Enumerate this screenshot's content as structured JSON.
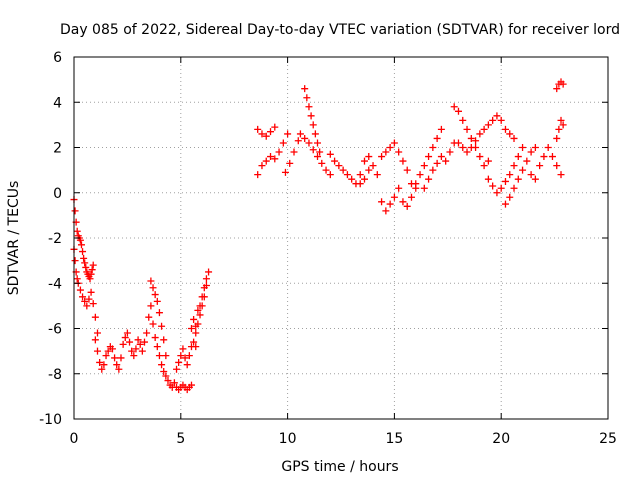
{
  "chart_data": {
    "type": "scatter",
    "title": "Day 085 of 2022, Sidereal Day-to-day VTEC variation (SDTVAR) for receiver lord",
    "xlabel": "GPS time / hours",
    "ylabel": "SDTVAR / TECUs",
    "xlim": [
      0,
      25
    ],
    "ylim": [
      -10,
      6
    ],
    "xticks": [
      0,
      5,
      10,
      15,
      20,
      25
    ],
    "yticks": [
      -10,
      -8,
      -6,
      -4,
      -2,
      0,
      2,
      4,
      6
    ],
    "grid": true,
    "marker": "+",
    "color": "#ff0000",
    "series": [
      {
        "x": [
          0.0,
          0.05,
          0.1,
          0.15,
          0.2,
          0.25,
          0.3,
          0.35,
          0.4,
          0.45,
          0.5,
          0.55,
          0.6,
          0.65,
          0.7,
          0.75,
          0.8,
          0.85,
          0.9,
          0.0,
          0.05,
          0.1,
          0.15,
          0.2,
          0.3,
          0.4,
          0.5,
          0.6,
          0.7,
          0.8,
          0.9,
          1.0,
          1.1,
          1.0,
          1.1,
          1.2,
          1.3,
          1.4,
          1.5,
          1.6,
          1.7,
          1.8,
          1.9,
          2.0,
          2.1,
          2.2,
          2.3,
          2.4,
          2.5,
          2.6,
          2.7,
          2.8,
          2.9,
          3.0,
          3.1,
          3.2,
          3.3,
          3.4,
          3.5,
          3.6,
          3.7,
          3.8,
          3.9,
          4.0,
          4.1,
          4.2,
          4.3,
          4.4,
          4.5,
          4.6,
          3.6,
          3.7,
          3.8,
          3.9,
          4.0,
          4.1,
          4.2,
          4.3,
          4.7,
          4.8,
          4.9,
          5.0,
          5.1,
          5.2,
          5.3,
          5.4,
          5.5,
          4.8,
          4.9,
          5.0,
          5.1,
          5.2,
          5.3,
          5.4,
          5.5,
          5.6,
          5.7,
          5.5,
          5.6,
          5.7,
          5.8,
          5.9,
          6.0,
          6.1,
          6.2,
          6.3,
          5.7,
          5.8,
          5.9,
          6.0,
          6.1,
          6.2,
          8.6,
          8.8,
          9.0,
          9.2,
          9.4,
          8.6,
          8.8,
          9.0,
          9.2,
          9.4,
          9.6,
          9.8,
          10.0,
          9.9,
          10.1,
          10.3,
          10.5,
          10.6,
          10.8,
          11.0,
          11.2,
          11.4,
          11.6,
          11.8,
          12.0,
          10.8,
          10.9,
          11.0,
          11.1,
          11.2,
          11.3,
          11.4,
          11.5,
          12.0,
          12.2,
          12.4,
          12.6,
          12.8,
          13.0,
          13.2,
          13.4,
          13.6,
          13.8,
          13.4,
          13.6,
          13.8,
          14.0,
          14.2,
          14.4,
          14.6,
          14.8,
          15.0,
          15.2,
          14.4,
          14.6,
          14.8,
          15.0,
          15.2,
          15.4,
          15.6,
          15.8,
          16.0,
          15.4,
          15.6,
          15.8,
          16.0,
          16.2,
          16.4,
          16.6,
          16.8,
          17.0,
          17.2,
          16.4,
          16.6,
          16.8,
          17.0,
          17.2,
          17.4,
          17.6,
          17.8,
          17.8,
          18.0,
          18.2,
          18.4,
          18.6,
          18.8,
          19.0,
          19.2,
          19.4,
          18.0,
          18.2,
          18.4,
          18.6,
          18.8,
          19.0,
          19.2,
          19.4,
          19.6,
          19.8,
          20.0,
          20.2,
          20.4,
          20.6,
          19.4,
          19.6,
          19.8,
          20.0,
          20.2,
          20.4,
          20.6,
          20.8,
          21.0,
          20.2,
          20.4,
          20.6,
          20.8,
          21.0,
          21.2,
          21.4,
          21.6,
          21.4,
          21.6,
          21.8,
          22.0,
          22.2,
          22.4,
          22.6,
          22.8,
          22.6,
          22.7,
          22.8,
          22.9,
          22.6,
          22.7,
          22.8,
          22.9
        ],
        "y": [
          -0.3,
          -0.8,
          -1.3,
          -1.7,
          -1.9,
          -2.0,
          -2.1,
          -2.3,
          -2.6,
          -2.9,
          -3.1,
          -3.3,
          -3.5,
          -3.6,
          -3.7,
          -3.8,
          -3.6,
          -3.4,
          -3.2,
          -2.5,
          -3.0,
          -3.5,
          -3.8,
          -4.0,
          -4.3,
          -4.6,
          -4.8,
          -5.0,
          -4.7,
          -4.4,
          -4.9,
          -5.5,
          -6.2,
          -6.5,
          -7.0,
          -7.5,
          -7.8,
          -7.6,
          -7.2,
          -7.0,
          -6.8,
          -6.9,
          -7.3,
          -7.6,
          -7.8,
          -7.3,
          -6.7,
          -6.4,
          -6.2,
          -6.6,
          -7.0,
          -7.2,
          -6.9,
          -6.5,
          -6.7,
          -7.0,
          -6.6,
          -6.2,
          -5.5,
          -5.0,
          -5.8,
          -6.4,
          -6.8,
          -7.2,
          -7.6,
          -7.9,
          -8.1,
          -8.3,
          -8.5,
          -8.6,
          -3.9,
          -4.2,
          -4.5,
          -4.8,
          -5.3,
          -5.9,
          -6.5,
          -7.2,
          -8.4,
          -8.6,
          -8.7,
          -8.6,
          -8.5,
          -8.6,
          -8.7,
          -8.6,
          -8.5,
          -7.8,
          -7.5,
          -7.2,
          -6.9,
          -7.3,
          -7.6,
          -7.2,
          -6.8,
          -6.6,
          -6.8,
          -6.0,
          -5.6,
          -5.9,
          -5.2,
          -5.0,
          -4.6,
          -4.2,
          -3.8,
          -3.5,
          -6.2,
          -5.8,
          -5.4,
          -5.0,
          -4.6,
          -4.1,
          2.8,
          2.6,
          2.5,
          2.7,
          2.9,
          0.8,
          1.2,
          1.4,
          1.6,
          1.5,
          1.8,
          2.2,
          2.6,
          0.9,
          1.3,
          1.8,
          2.3,
          2.6,
          2.4,
          2.2,
          1.9,
          1.6,
          1.3,
          1.0,
          0.8,
          4.6,
          4.2,
          3.8,
          3.4,
          3.0,
          2.6,
          2.2,
          1.8,
          1.7,
          1.4,
          1.2,
          1.0,
          0.8,
          0.6,
          0.4,
          0.8,
          1.4,
          1.6,
          0.4,
          0.6,
          1.0,
          1.2,
          0.8,
          -0.4,
          -0.8,
          -0.5,
          -0.2,
          0.2,
          1.6,
          1.8,
          2.0,
          2.2,
          1.8,
          1.4,
          1.0,
          0.4,
          0.2,
          -0.4,
          -0.6,
          -0.2,
          0.4,
          0.8,
          1.2,
          1.6,
          2.0,
          2.4,
          2.8,
          0.2,
          0.6,
          1.0,
          1.3,
          1.6,
          1.4,
          1.8,
          2.2,
          3.8,
          3.6,
          3.2,
          2.8,
          2.4,
          2.0,
          1.6,
          1.2,
          1.4,
          2.2,
          2.0,
          1.8,
          2.0,
          2.3,
          2.6,
          2.8,
          3.0,
          3.2,
          3.4,
          3.2,
          2.8,
          2.6,
          2.4,
          0.6,
          0.3,
          0.0,
          0.2,
          0.5,
          0.8,
          1.2,
          1.6,
          2.0,
          -0.5,
          -0.2,
          0.2,
          0.6,
          1.0,
          1.4,
          1.8,
          2.0,
          0.8,
          0.6,
          1.2,
          1.6,
          2.0,
          1.6,
          1.2,
          0.8,
          4.6,
          4.8,
          4.9,
          4.8,
          2.4,
          2.8,
          3.2,
          3.0
        ]
      }
    ]
  }
}
